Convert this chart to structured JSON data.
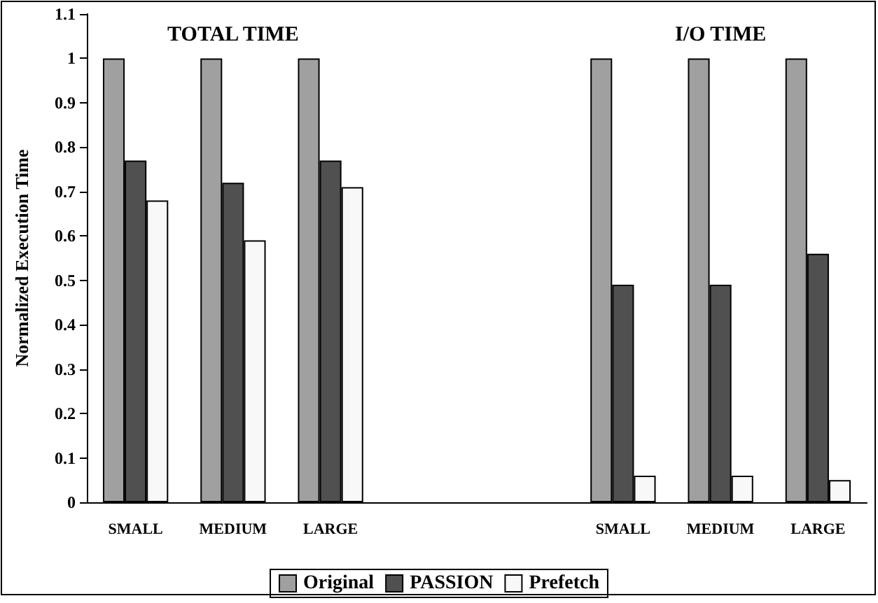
{
  "chart_data": {
    "type": "bar",
    "ylabel": "Normalized Execution Time",
    "categories": [
      "SMALL",
      "MEDIUM",
      "LARGE",
      null,
      null,
      "SMALL",
      "MEDIUM",
      "LARGE"
    ],
    "series": [
      {
        "name": "Original",
        "color": "#a0a0a0",
        "values": [
          1,
          1,
          1,
          null,
          null,
          1,
          1,
          1
        ]
      },
      {
        "name": "PASSION",
        "color": "#505050",
        "values": [
          0.77,
          0.72,
          0.77,
          null,
          null,
          0.49,
          0.49,
          0.56
        ]
      },
      {
        "name": "Prefetch",
        "color": "#f8f8f8",
        "values": [
          0.68,
          0.59,
          0.71,
          null,
          null,
          0.06,
          0.06,
          0.05
        ]
      }
    ],
    "annotations": [
      "TOTAL TIME",
      "I/O TIME"
    ],
    "ylim": [
      0,
      1.1
    ],
    "yticks": [
      0,
      0.1,
      0.2,
      0.3,
      0.4,
      0.5,
      0.6,
      0.7,
      0.8,
      0.9,
      1,
      1.1
    ],
    "grid": false,
    "legend": "bottom"
  }
}
